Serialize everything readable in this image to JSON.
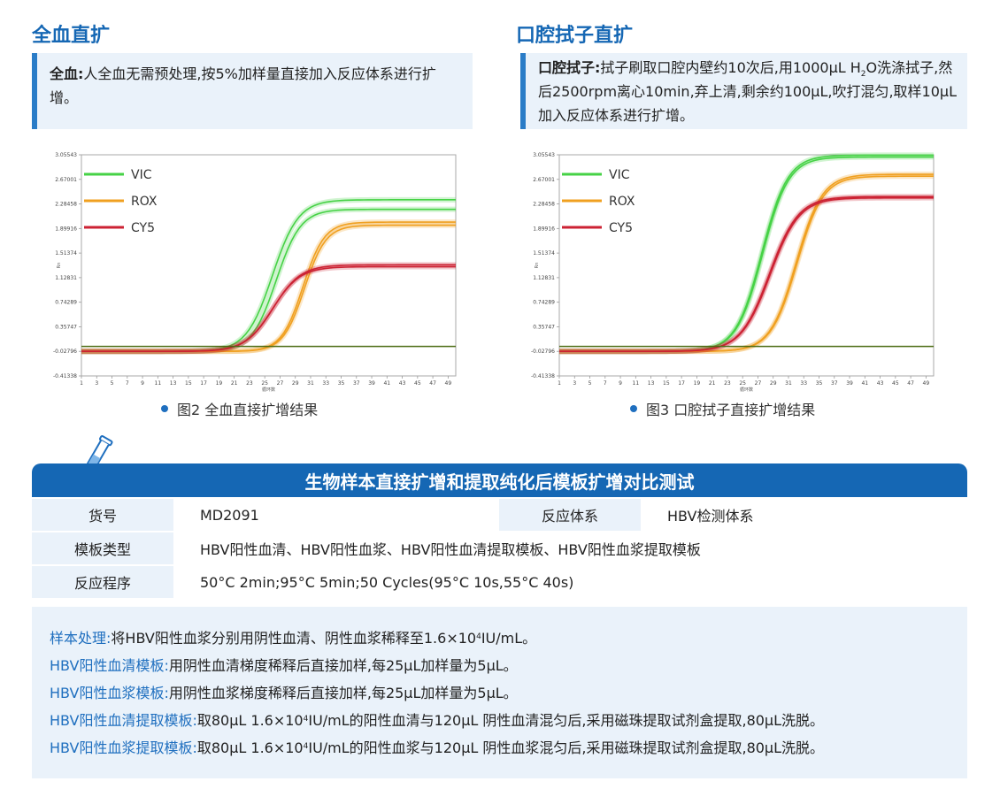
{
  "colors": {
    "primary": "#1567b4",
    "light_bg": "#eaf2fa",
    "vic": "#46d246",
    "rox": "#f0a020",
    "cy5": "#cc2233",
    "threshold": "#4a6a10"
  },
  "left_section": {
    "title": "全血直扩",
    "note_label": "全血:",
    "note_text": "人全血无需预处理,按5%加样量直接加入反应体系进行扩增。",
    "caption": "图2  全血直接扩增结果"
  },
  "right_section": {
    "title": "口腔拭子直扩",
    "note_label": "口腔拭子:",
    "note_text_1": "拭子刷取口腔内壁约10次后,用1000μL  H",
    "note_sub": "2",
    "note_text_2": "O洗涤拭子,然后2500rpm离心10min,弃上清,剩余约100μL,吹打混匀,取样10μL加入反应体系进行扩增。",
    "caption": "图3  口腔拭子直接扩增结果"
  },
  "chart_data": [
    {
      "type": "line",
      "title": "",
      "xlabel": "循环数",
      "ylabel": "Rn",
      "ylim": [
        -0.41336,
        3.05543
      ],
      "yticks": [
        "3.05543",
        "2.67001",
        "2.28458",
        "1.89916",
        "1.51374",
        "1.12831",
        "0.74289",
        "0.35747",
        "-0.02796",
        "-0.41338"
      ],
      "xticks": [
        "1",
        "3",
        "5",
        "7",
        "9",
        "11",
        "13",
        "15",
        "17",
        "19",
        "21",
        "23",
        "25",
        "27",
        "29",
        "31",
        "33",
        "35",
        "37",
        "39",
        "41",
        "43",
        "45",
        "47",
        "49"
      ],
      "legend": [
        "VIC",
        "ROX",
        "CY5"
      ],
      "threshold": 0.05,
      "series": [
        {
          "name": "VIC",
          "color": "#46d246",
          "plateau": 2.2,
          "midpoint": 26.5,
          "slope": 1.6
        },
        {
          "name": "VIC",
          "color": "#46d246",
          "plateau": 2.35,
          "midpoint": 26.0,
          "slope": 1.7
        },
        {
          "name": "ROX",
          "color": "#f0a020",
          "plateau": 2.0,
          "midpoint": 30.0,
          "slope": 1.4
        },
        {
          "name": "ROX",
          "color": "#f0a020",
          "plateau": 1.95,
          "midpoint": 30.2,
          "slope": 1.4
        },
        {
          "name": "CY5",
          "color": "#cc2233",
          "plateau": 1.3,
          "midpoint": 26.0,
          "slope": 1.8
        },
        {
          "name": "CY5",
          "color": "#cc2233",
          "plateau": 1.33,
          "midpoint": 26.1,
          "slope": 1.8
        }
      ]
    },
    {
      "type": "line",
      "title": "",
      "xlabel": "循环数",
      "ylabel": "Rn",
      "ylim": [
        -0.41338,
        3.05543
      ],
      "yticks": [
        "3.05543",
        "2.67001",
        "2.28458",
        "1.89916",
        "1.51374",
        "1.12831",
        "0.74289",
        "0.35747",
        "-0.02796",
        "-0.41338"
      ],
      "xticks": [
        "1",
        "3",
        "5",
        "7",
        "9",
        "11",
        "13",
        "15",
        "17",
        "19",
        "21",
        "23",
        "25",
        "27",
        "29",
        "31",
        "33",
        "35",
        "37",
        "39",
        "41",
        "43",
        "45",
        "47",
        "49"
      ],
      "legend": [
        "VIC",
        "ROX",
        "CY5"
      ],
      "threshold": 0.05,
      "series": [
        {
          "name": "VIC",
          "color": "#46d246",
          "plateau": 3.05,
          "midpoint": 27.5,
          "slope": 1.7
        },
        {
          "name": "VIC",
          "color": "#46d246",
          "plateau": 3.02,
          "midpoint": 27.6,
          "slope": 1.7
        },
        {
          "name": "ROX",
          "color": "#f0a020",
          "plateau": 2.75,
          "midpoint": 32.0,
          "slope": 1.7
        },
        {
          "name": "ROX",
          "color": "#f0a020",
          "plateau": 2.72,
          "midpoint": 32.1,
          "slope": 1.7
        },
        {
          "name": "CY5",
          "color": "#cc2233",
          "plateau": 2.4,
          "midpoint": 28.5,
          "slope": 1.9
        },
        {
          "name": "CY5",
          "color": "#cc2233",
          "plateau": 2.38,
          "midpoint": 28.6,
          "slope": 1.9
        }
      ]
    }
  ],
  "table": {
    "title": "生物样本直接扩增和提取纯化后模板扩增对比测试",
    "row1": {
      "label1": "货号",
      "value1": "MD2091",
      "label2": "反应体系",
      "value2": "HBV检测体系"
    },
    "row2": {
      "label": "模板类型",
      "value": "HBV阳性血清、HBV阳性血浆、HBV阳性血清提取模板、HBV阳性血浆提取模板"
    },
    "row3": {
      "label": "反应程序",
      "value": "50°C 2min;95°C 5min;50 Cycles(95°C 10s,55°C 40s)"
    }
  },
  "notes": {
    "l1_label": "样本处理:",
    "l1_a": " 将HBV阳性血浆分别用阴性血清、阴性血浆稀释至1.6×10",
    "l1_sup": "4",
    "l1_b": " IU/mL。",
    "l2_label": "HBV阳性血清模板:",
    "l2_text": " 用阴性血清梯度稀释后直接加样,每25μL加样量为5μL。",
    "l3_label": "HBV阳性血浆模板:",
    "l3_text": " 用阴性血浆梯度稀释后直接加样,每25μL加样量为5μL。",
    "l4_label": "HBV阳性血清提取模板:",
    "l4_a": " 取80μL 1.6×10",
    "l4_sup": "4",
    "l4_b": " IU/mL的阳性血清与120μL 阴性血清混匀后,采用磁珠提取试剂盒提取,80μL洗脱。",
    "l5_label": "HBV阳性血浆提取模板:",
    "l5_a": " 取80μL 1.6×10",
    "l5_sup": "4",
    "l5_b": " IU/mL的阳性血浆与120μL 阴性血浆混匀后,采用磁珠提取试剂盒提取,80μL洗脱。"
  }
}
